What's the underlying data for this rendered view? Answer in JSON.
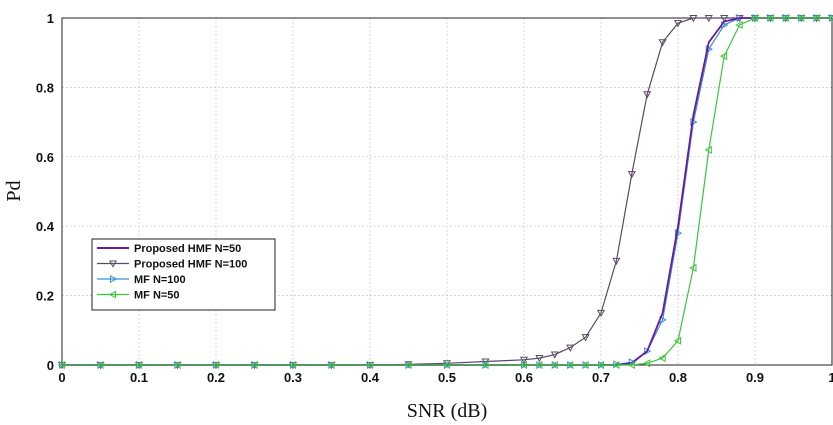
{
  "chart_data": {
    "type": "line",
    "xlabel": "SNR (dB)",
    "ylabel": "Pd",
    "xlim": [
      0,
      1
    ],
    "ylim": [
      0,
      1
    ],
    "xticks": [
      "0",
      "0.1",
      "0.2",
      "0.3",
      "0.4",
      "0.5",
      "0.6",
      "0.7",
      "0.8",
      "0.9",
      "1"
    ],
    "yticks": [
      "0",
      "0.2",
      "0.4",
      "0.6",
      "0.8",
      "1"
    ],
    "grid": true,
    "legend_position": "left-middle",
    "x": [
      0,
      0.05,
      0.1,
      0.15,
      0.2,
      0.25,
      0.3,
      0.35,
      0.4,
      0.45,
      0.5,
      0.55,
      0.6,
      0.62,
      0.64,
      0.66,
      0.68,
      0.7,
      0.72,
      0.74,
      0.76,
      0.78,
      0.8,
      0.82,
      0.84,
      0.86,
      0.88,
      0.9,
      0.92,
      0.94,
      0.96,
      0.98,
      1.0
    ],
    "series": [
      {
        "name": "Proposed HMF N=50",
        "color": "#6a1b9a",
        "marker": "none",
        "values": [
          0,
          0,
          0,
          0,
          0,
          0,
          0,
          0,
          0,
          0,
          0,
          0,
          0,
          0,
          0,
          0,
          0,
          0,
          0,
          0.005,
          0.04,
          0.15,
          0.4,
          0.72,
          0.93,
          0.99,
          1,
          1,
          1,
          1,
          1,
          1,
          1
        ]
      },
      {
        "name": "Proposed HMF N=100",
        "color": "#5b4a63",
        "marker": "triangle-down",
        "values": [
          0,
          0,
          0,
          0,
          0,
          0,
          0,
          0,
          0,
          0.002,
          0.005,
          0.01,
          0.015,
          0.02,
          0.03,
          0.05,
          0.08,
          0.15,
          0.3,
          0.55,
          0.78,
          0.93,
          0.985,
          1,
          1,
          1,
          1,
          1,
          1,
          1,
          1,
          1,
          1
        ]
      },
      {
        "name": "MF N=100",
        "color": "#3d8fd6",
        "marker": "triangle-right",
        "values": [
          0,
          0,
          0,
          0,
          0,
          0,
          0,
          0,
          0,
          0,
          0,
          0,
          0,
          0,
          0,
          0,
          0,
          0,
          0.002,
          0.008,
          0.04,
          0.13,
          0.38,
          0.7,
          0.91,
          0.98,
          1,
          1,
          1,
          1,
          1,
          1,
          1
        ]
      },
      {
        "name": "MF N=50",
        "color": "#3ec43e",
        "marker": "triangle-left",
        "values": [
          0,
          0,
          0,
          0,
          0,
          0,
          0,
          0,
          0,
          0,
          0,
          0,
          0,
          0,
          0,
          0,
          0,
          0,
          0,
          0,
          0.005,
          0.02,
          0.07,
          0.28,
          0.62,
          0.89,
          0.98,
          1,
          1,
          1,
          1,
          1,
          1
        ]
      }
    ]
  }
}
